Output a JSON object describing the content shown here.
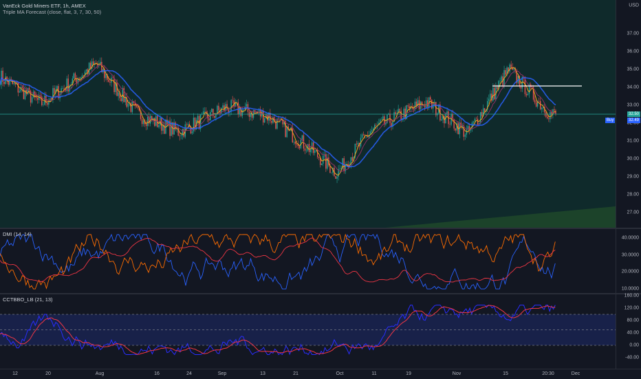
{
  "chart": {
    "title": "VanEck Gold Miners ETF, 1h, AMEX",
    "indicator": "Triple MA Forecast (close, flat, 3, 7, 30, 50)",
    "currency": "USD",
    "price_ticks": [
      "37.00",
      "36.00",
      "35.00",
      "34.00",
      "33.00",
      "32.00",
      "31.00",
      "30.00",
      "29.00",
      "28.00",
      "27.00"
    ],
    "last_price": "32.50",
    "buy_label": "Buy",
    "buy_price": "32.49",
    "colors": {
      "background": "#0f2a2b",
      "up": "#26a69a",
      "down": "#ef5350",
      "ma_fast": "#f7a21b",
      "ma_mid": "#8e2f63",
      "ma_slow": "#2962ff"
    }
  },
  "dmi": {
    "title": "DMI (14, 14)",
    "ticks": [
      "40.0000",
      "30.0000",
      "20.0000",
      "10.0000"
    ],
    "colors": {
      "plus": "#2962ff",
      "minus": "#ff6d00",
      "adx": "#f23645"
    }
  },
  "cctbbo": {
    "title": "CCTBBO_LB (21, 13)",
    "ticks": [
      "160.00",
      "120.00",
      "80.00",
      "40.00",
      "0.00",
      "-40.00"
    ],
    "colors": {
      "line1": "#2a2eff",
      "line2": "#f23645"
    }
  },
  "time_axis": {
    "labels": [
      "12",
      "20",
      "Aug",
      "16",
      "24",
      "Sep",
      "13",
      "21",
      "Oct",
      "11",
      "19",
      "Nov",
      "15",
      "20:30",
      "Dec"
    ]
  },
  "chart_data": {
    "type": "line",
    "title": "VanEck Gold Miners ETF, 1h, AMEX",
    "xlabel": "",
    "ylabel": "",
    "ylim": [
      26.5,
      37.6
    ],
    "x": [
      "12",
      "20",
      "Aug",
      "16",
      "24",
      "Sep",
      "13",
      "21",
      "Oct",
      "11",
      "19",
      "Nov",
      "15",
      "20:30"
    ],
    "series": [
      {
        "name": "",
        "values": [
          34.6,
          33.1,
          35.3,
          32.5,
          31.5,
          32.9,
          32.4,
          30.6,
          29.2,
          31.6,
          33.2,
          31.4,
          35.0,
          32.5
        ]
      }
    ]
  }
}
